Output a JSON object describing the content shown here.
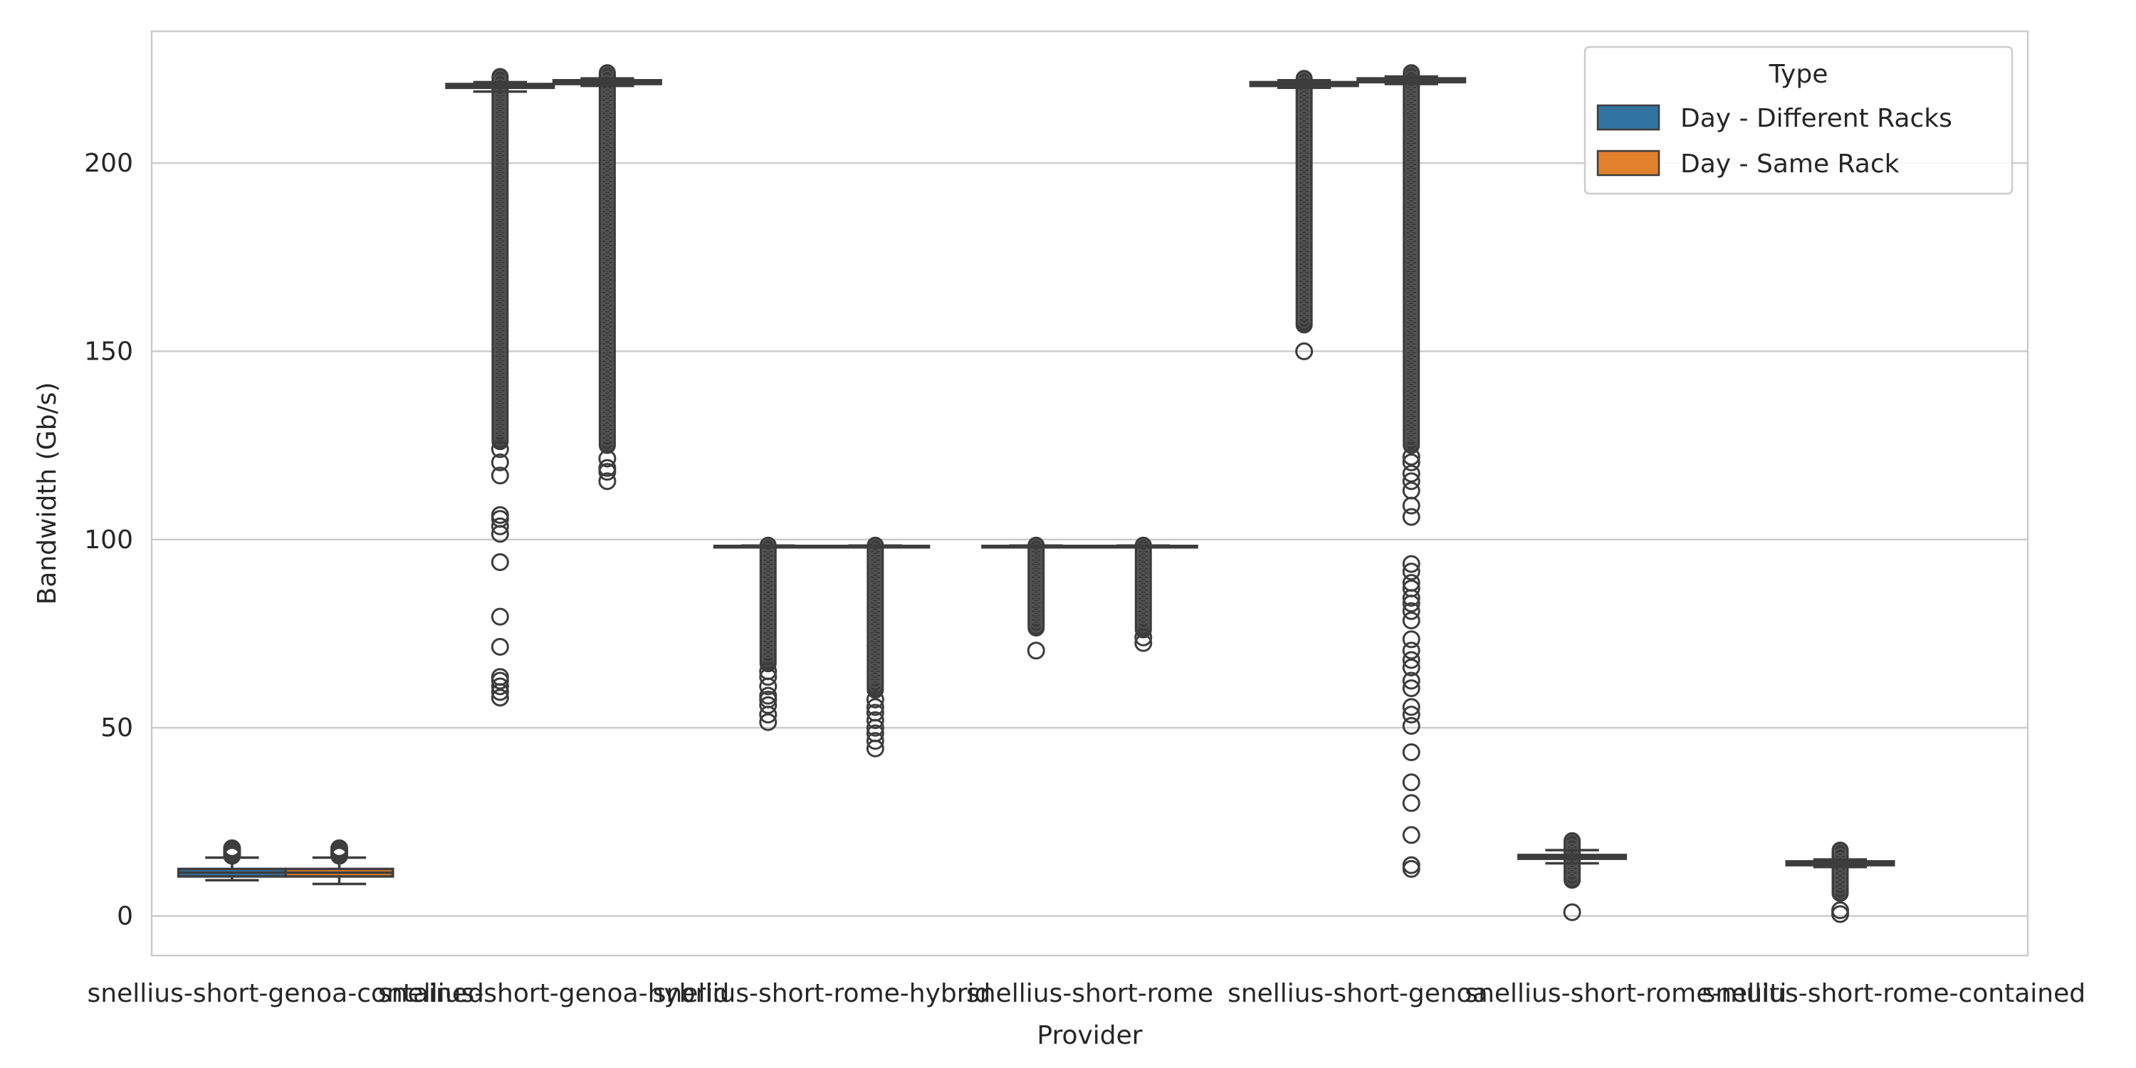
{
  "chart_data": {
    "type": "box",
    "xlabel": "Provider",
    "ylabel": "Bandwidth (Gb/s)",
    "ylim": [
      -10.5,
      235
    ],
    "yticks": [
      0,
      50,
      100,
      150,
      200
    ],
    "grid": true,
    "categories": [
      "snellius-short-genoa-contained",
      "snellius-short-genoa-hybrid",
      "snellius-short-rome-hybrid",
      "snellius-short-rome",
      "snellius-short-genoa",
      "snellius-short-rome-multi",
      "snellius-short-rome-contained"
    ],
    "legend": {
      "title": "Type",
      "placement": "top-right"
    },
    "colors": {
      "box_line": "#3d3d3d",
      "grid": "#cccccc",
      "axes_frame": "#cccccc"
    },
    "series": [
      {
        "name": "Day - Different Racks",
        "color": "#3274a1",
        "boxes": [
          {
            "category": 0,
            "whislo": 9.5,
            "q1": 10.5,
            "med": 11.5,
            "q3": 12.5,
            "whishi": 15.5,
            "outliers": [
              16,
              16.5,
              17,
              17.5,
              18
            ]
          },
          {
            "category": 1,
            "whislo": 219.0,
            "q1": 220.0,
            "med": 220.5,
            "q3": 221.0,
            "whishi": 221.5,
            "outlier_band": [
              126,
              223
            ],
            "outliers": [
              58,
              59.5,
              61,
              62.5,
              63.5,
              71.5,
              79.5,
              94,
              101.5,
              103.5,
              105.5,
              106.5,
              117,
              120.5,
              124
            ]
          },
          {
            "category": 2,
            "whislo": 98.0,
            "q1": 98.1,
            "med": 98.2,
            "q3": 98.3,
            "whishi": 98.4,
            "outlier_band": [
              67,
              98.5
            ],
            "outliers": [
              51.5,
              53.5,
              56,
              57.5,
              58.5,
              61,
              63.5,
              65
            ]
          },
          {
            "category": 3,
            "whislo": 98.0,
            "q1": 98.1,
            "med": 98.2,
            "q3": 98.3,
            "whishi": 98.4,
            "outlier_band": [
              76.5,
              98.5
            ],
            "outliers": [
              70.5
            ]
          },
          {
            "category": 4,
            "whislo": 220.0,
            "q1": 220.5,
            "med": 221.0,
            "q3": 221.5,
            "whishi": 222.0,
            "outlier_band": [
              157,
              222.5
            ],
            "outliers": [
              150
            ]
          },
          {
            "category": 5,
            "whislo": 14.0,
            "q1": 15.2,
            "med": 15.7,
            "q3": 16.2,
            "whishi": 17.5,
            "outlier_band": [
              9.5,
              20
            ],
            "outliers": [
              1
            ]
          },
          {
            "category": 6,
            "whislo": 13.0,
            "q1": 13.5,
            "med": 14.0,
            "q3": 14.5,
            "whishi": 15.0,
            "outlier_band": [
              6,
              17.5
            ],
            "outliers": [
              0.5,
              1.5
            ]
          }
        ]
      },
      {
        "name": "Day - Same Rack",
        "color": "#e1812c",
        "boxes": [
          {
            "category": 0,
            "whislo": 8.5,
            "q1": 10.5,
            "med": 11.5,
            "q3": 12.5,
            "whishi": 15.5,
            "outliers": [
              16,
              16.5,
              17,
              17.5,
              18
            ]
          },
          {
            "category": 1,
            "whislo": 220.5,
            "q1": 221.0,
            "med": 221.5,
            "q3": 222.0,
            "whishi": 222.5,
            "outlier_band": [
              125,
              224
            ],
            "outliers": [
              115.5,
              118,
              119,
              121.5
            ]
          },
          {
            "category": 2,
            "whislo": 98.0,
            "q1": 98.1,
            "med": 98.2,
            "q3": 98.3,
            "whishi": 98.4,
            "outlier_band": [
              60,
              98.5
            ],
            "outliers": [
              44.5,
              46.5,
              48.5,
              50,
              52,
              54,
              55.5,
              57.5
            ]
          },
          {
            "category": 3,
            "whislo": 98.0,
            "q1": 98.1,
            "med": 98.2,
            "q3": 98.3,
            "whishi": 98.4,
            "outlier_band": [
              76,
              98.5
            ],
            "outliers": [
              72.5,
              74
            ]
          },
          {
            "category": 4,
            "whislo": 221.0,
            "q1": 221.5,
            "med": 222.0,
            "q3": 222.5,
            "whishi": 223.0,
            "outlier_band": [
              125,
              224
            ],
            "outliers": [
              12.5,
              13.5,
              21.5,
              30,
              35.5,
              43.5,
              50.5,
              53.5,
              55.5,
              60.5,
              62.5,
              66,
              68,
              70.5,
              73.5,
              78.5,
              81,
              83,
              84.5,
              87,
              88.5,
              91.5,
              93.5,
              106,
              109,
              113,
              115.5,
              117.5,
              120.5,
              122
            ]
          }
        ]
      }
    ]
  }
}
